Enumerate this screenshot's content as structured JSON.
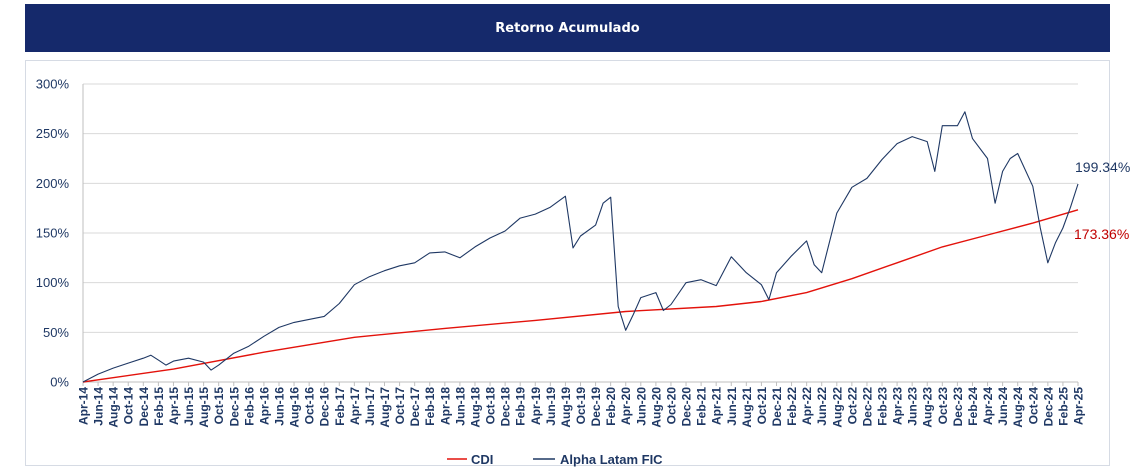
{
  "header": {
    "title": "Retorno Acumulado"
  },
  "chart_data": {
    "type": "line",
    "title": "Retorno Acumulado",
    "ylim": [
      0,
      300
    ],
    "y_unit": "%",
    "y_ticks": [
      "0%",
      "50%",
      "100%",
      "150%",
      "200%",
      "250%",
      "300%"
    ],
    "x_range": [
      "Apr-14",
      "Apr-25"
    ],
    "x_ticks": [
      "Apr-14",
      "Jun-14",
      "Aug-14",
      "Oct-14",
      "Dec-14",
      "Feb-15",
      "Apr-15",
      "Jun-15",
      "Aug-15",
      "Oct-15",
      "Dec-15",
      "Feb-16",
      "Apr-16",
      "Jun-16",
      "Aug-16",
      "Oct-16",
      "Dec-16",
      "Feb-17",
      "Apr-17",
      "Jun-17",
      "Aug-17",
      "Oct-17",
      "Dec-17",
      "Feb-18",
      "Apr-18",
      "Jun-18",
      "Aug-18",
      "Oct-18",
      "Dec-18",
      "Feb-19",
      "Apr-19",
      "Jun-19",
      "Aug-19",
      "Oct-19",
      "Dec-19",
      "Feb-20",
      "Apr-20",
      "Jun-20",
      "Aug-20",
      "Oct-20",
      "Dec-20",
      "Feb-21",
      "Apr-21",
      "Jun-21",
      "Aug-21",
      "Oct-21",
      "Dec-21",
      "Feb-22",
      "Apr-22",
      "Jun-22",
      "Aug-22",
      "Oct-22",
      "Dec-22",
      "Feb-23",
      "Apr-23",
      "Jun-23",
      "Aug-23",
      "Oct-23",
      "Dec-23",
      "Feb-24",
      "Apr-24",
      "Jun-24",
      "Aug-24",
      "Oct-24",
      "Dec-24",
      "Feb-25",
      "Apr-25"
    ],
    "grid": true,
    "legend_position": "bottom",
    "series": [
      {
        "name": "CDI",
        "color": "#e3120b",
        "end_label": "173.36%",
        "points": [
          [
            "Apr-14",
            0
          ],
          [
            "Apr-15",
            13
          ],
          [
            "Apr-16",
            30
          ],
          [
            "Apr-17",
            45
          ],
          [
            "Apr-18",
            54
          ],
          [
            "Apr-19",
            62
          ],
          [
            "Apr-20",
            71
          ],
          [
            "Apr-21",
            76
          ],
          [
            "Oct-21",
            81
          ],
          [
            "Apr-22",
            90
          ],
          [
            "Oct-22",
            104
          ],
          [
            "Apr-23",
            120
          ],
          [
            "Oct-23",
            136
          ],
          [
            "Apr-24",
            148
          ],
          [
            "Oct-24",
            160
          ],
          [
            "Apr-25",
            173.36
          ]
        ]
      },
      {
        "name": "Alpha Latam FIC",
        "color": "#1f3864",
        "end_label": "199.34%",
        "points": [
          [
            "Apr-14",
            0
          ],
          [
            "Jun-14",
            8
          ],
          [
            "Aug-14",
            14
          ],
          [
            "Oct-14",
            19
          ],
          [
            "Dec-14",
            24
          ],
          [
            "Jan-15",
            27
          ],
          [
            "Feb-15",
            22
          ],
          [
            "Mar-15",
            17
          ],
          [
            "Apr-15",
            21
          ],
          [
            "Jun-15",
            24
          ],
          [
            "Aug-15",
            20
          ],
          [
            "Sep-15",
            12
          ],
          [
            "Oct-15",
            17
          ],
          [
            "Dec-15",
            29
          ],
          [
            "Feb-16",
            36
          ],
          [
            "Apr-16",
            46
          ],
          [
            "Jun-16",
            55
          ],
          [
            "Aug-16",
            60
          ],
          [
            "Oct-16",
            63
          ],
          [
            "Dec-16",
            66
          ],
          [
            "Feb-17",
            79
          ],
          [
            "Apr-17",
            98
          ],
          [
            "Jun-17",
            106
          ],
          [
            "Aug-17",
            112
          ],
          [
            "Oct-17",
            117
          ],
          [
            "Dec-17",
            120
          ],
          [
            "Feb-18",
            130
          ],
          [
            "Apr-18",
            131
          ],
          [
            "Jun-18",
            125
          ],
          [
            "Aug-18",
            136
          ],
          [
            "Oct-18",
            145
          ],
          [
            "Dec-18",
            152
          ],
          [
            "Feb-19",
            165
          ],
          [
            "Apr-19",
            169
          ],
          [
            "Jun-19",
            176
          ],
          [
            "Aug-19",
            187
          ],
          [
            "Sep-19",
            135
          ],
          [
            "Oct-19",
            147
          ],
          [
            "Dec-19",
            158
          ],
          [
            "Jan-20",
            180
          ],
          [
            "Feb-20",
            186
          ],
          [
            "Mar-20",
            76
          ],
          [
            "Apr-20",
            52
          ],
          [
            "May-20",
            68
          ],
          [
            "Jun-20",
            85
          ],
          [
            "Aug-20",
            90
          ],
          [
            "Sep-20",
            72
          ],
          [
            "Oct-20",
            78
          ],
          [
            "Dec-20",
            100
          ],
          [
            "Feb-21",
            103
          ],
          [
            "Apr-21",
            97
          ],
          [
            "Jun-21",
            126
          ],
          [
            "Aug-21",
            110
          ],
          [
            "Oct-21",
            98
          ],
          [
            "Nov-21",
            83
          ],
          [
            "Dec-21",
            110
          ],
          [
            "Feb-22",
            127
          ],
          [
            "Apr-22",
            142
          ],
          [
            "May-22",
            118
          ],
          [
            "Jun-22",
            110
          ],
          [
            "Aug-22",
            170
          ],
          [
            "Oct-22",
            196
          ],
          [
            "Dec-22",
            205
          ],
          [
            "Feb-23",
            224
          ],
          [
            "Apr-23",
            240
          ],
          [
            "Jun-23",
            247
          ],
          [
            "Aug-23",
            242
          ],
          [
            "Sep-23",
            212
          ],
          [
            "Oct-23",
            258
          ],
          [
            "Dec-23",
            258
          ],
          [
            "Jan-24",
            272
          ],
          [
            "Feb-24",
            245
          ],
          [
            "Apr-24",
            225
          ],
          [
            "May-24",
            180
          ],
          [
            "Jun-24",
            212
          ],
          [
            "Jul-24",
            225
          ],
          [
            "Aug-24",
            230
          ],
          [
            "Oct-24",
            197
          ],
          [
            "Nov-24",
            155
          ],
          [
            "Dec-24",
            120
          ],
          [
            "Jan-25",
            140
          ],
          [
            "Feb-25",
            155
          ],
          [
            "Mar-25",
            176
          ],
          [
            "Apr-25",
            199.34
          ]
        ]
      }
    ]
  }
}
